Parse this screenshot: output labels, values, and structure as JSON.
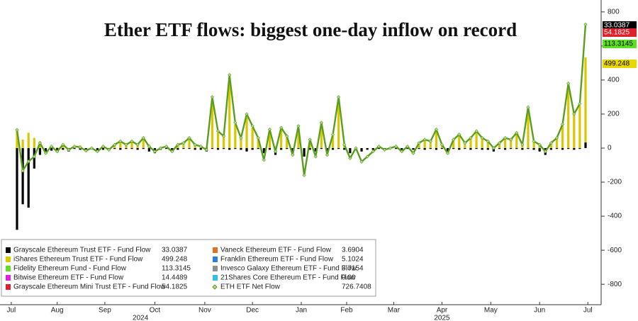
{
  "chart_data": {
    "type": "bar-line",
    "title": "Ether ETF flows: biggest one-day inflow on record",
    "categories": [
      null,
      null,
      null,
      null,
      null,
      null,
      null,
      null,
      null,
      null,
      null,
      null,
      null,
      null,
      null,
      null,
      null,
      null,
      null,
      null,
      null,
      null,
      null,
      null,
      null,
      null,
      null,
      null,
      null,
      null,
      null,
      null,
      null,
      null,
      null,
      null,
      null,
      null,
      null,
      null,
      null,
      null,
      null,
      null,
      null,
      null,
      null,
      null,
      null,
      null,
      null,
      null,
      null,
      null,
      null,
      null,
      null,
      null,
      null,
      null,
      null,
      null,
      null,
      null,
      null,
      null,
      null,
      null,
      null,
      null,
      null,
      null,
      null,
      null,
      null,
      null,
      null,
      null,
      null,
      null,
      null,
      null,
      null,
      null,
      null,
      null,
      null,
      null,
      null,
      null,
      null,
      null,
      null,
      null,
      null,
      null,
      null,
      null,
      null,
      null
    ],
    "xticks": [
      {
        "value": -1,
        "label": "Jul"
      },
      {
        "value": 7,
        "label": "Aug"
      },
      {
        "value": 15.3,
        "label": "Sep"
      },
      {
        "value": 24,
        "label": "Oct"
      },
      {
        "value": 32.7,
        "label": "Nov"
      },
      {
        "value": 41,
        "label": "Dec"
      },
      {
        "value": 49.5,
        "label": "Jan"
      },
      {
        "value": 57.4,
        "label": "Feb"
      },
      {
        "value": 65.6,
        "label": "Mar"
      },
      {
        "value": 74,
        "label": "Apr"
      },
      {
        "value": 82.5,
        "label": "May"
      },
      {
        "value": 91,
        "label": "Jun"
      },
      {
        "value": 99.4,
        "label": "Jul"
      }
    ],
    "year_ticks": [
      {
        "value": 21.5,
        "label": "2024"
      },
      {
        "value": 74,
        "label": "2025"
      }
    ],
    "ylim": [
      -920,
      870
    ],
    "yticks": [
      -800,
      -600,
      -400,
      -200,
      0,
      200,
      400,
      600,
      800
    ],
    "series": [
      {
        "name": "Grayscale Ethereum Trust ETF - Fund Flow",
        "color": "#000000",
        "values": [
          -480,
          -330,
          -350,
          -120,
          -40,
          -20,
          -15,
          -25,
          -10,
          -20,
          -5,
          -10,
          -15,
          -5,
          -20,
          -10,
          -10,
          -5,
          -10,
          -5,
          -5,
          -10,
          -5,
          -20,
          -30,
          -10,
          -5,
          -15,
          -10,
          -5,
          -5,
          -10,
          -10,
          -20,
          -5,
          -10,
          -5,
          -10,
          -5,
          -10,
          -20,
          -10,
          -5,
          -30,
          -10,
          -40,
          -10,
          -5,
          -20,
          -5,
          -50,
          -10,
          -20,
          -5,
          -20,
          -10,
          -5,
          -10,
          -30,
          -10,
          -20,
          -10,
          -10,
          -5,
          -10,
          -5,
          -5,
          -10,
          -5,
          -10,
          -5,
          -10,
          -5,
          -10,
          -5,
          -20,
          -5,
          -10,
          -5,
          -10,
          -5,
          -10,
          -10,
          -20,
          -5,
          -10,
          -5,
          -5,
          -10,
          -5,
          -10,
          -20,
          -40,
          -10,
          -5,
          -10,
          -5,
          -10,
          -5,
          33.0387
        ]
      },
      {
        "name": "iShares Ethereum Trust ETF - Fund Flow",
        "color": "#d8c800",
        "values": [
          110,
          50,
          90,
          60,
          40,
          0,
          10,
          5,
          20,
          0,
          10,
          15,
          0,
          0,
          0,
          15,
          0,
          20,
          40,
          20,
          40,
          25,
          60,
          20,
          0,
          5,
          15,
          0,
          25,
          30,
          60,
          25,
          15,
          5,
          280,
          90,
          70,
          380,
          140,
          60,
          180,
          120,
          60,
          0,
          100,
          10,
          110,
          70,
          0,
          120,
          0,
          50,
          0,
          140,
          0,
          80,
          270,
          20,
          0,
          0,
          0,
          0,
          0,
          10,
          0,
          0,
          10,
          0,
          10,
          0,
          30,
          50,
          40,
          100,
          20,
          0,
          50,
          80,
          30,
          60,
          100,
          60,
          40,
          10,
          30,
          60,
          50,
          90,
          20,
          230,
          40,
          20,
          0,
          30,
          60,
          140,
          360,
          200,
          250,
          499.248
        ]
      },
      {
        "name": "Fidelity Ethereum Fund - Fund Flow",
        "color": "#5ee01e",
        "latest": 113.3145
      },
      {
        "name": "Bitwise Ethereum ETF - Fund Flow",
        "color": "#e020e0",
        "latest": 14.4489
      },
      {
        "name": "Grayscale Ethereum Mini Trust ETF - Fund Flow",
        "color": "#e0202a",
        "latest": 54.1825
      },
      {
        "name": "Vaneck Ethereum ETF - Fund Flow",
        "color": "#e07020",
        "latest": 3.6904
      },
      {
        "name": "Franklin Ethereum ETF - Fund Flow",
        "color": "#2a7fe0",
        "latest": 5.1024
      },
      {
        "name": "Invesco Galaxy Ethereum ETF - Fund Flow",
        "color": "#909090",
        "latest": 3.7154
      },
      {
        "name": "21Shares Core Ethereum ETF - Fund Flow",
        "color": "#30c0e8",
        "latest": {
          "value": 0,
          "label": "0.00"
        }
      },
      {
        "name": "ETH ETF Net Flow",
        "color": "#5a9e1e",
        "type": "line",
        "values": [
          107,
          -133,
          -78,
          -50,
          30,
          -30,
          10,
          -20,
          20,
          -10,
          10,
          5,
          -15,
          0,
          -20,
          10,
          -10,
          20,
          40,
          20,
          40,
          20,
          60,
          10,
          -20,
          0,
          10,
          -20,
          20,
          30,
          60,
          20,
          10,
          -10,
          300,
          100,
          70,
          430,
          150,
          60,
          200,
          130,
          60,
          -70,
          110,
          -20,
          120,
          70,
          -40,
          130,
          -160,
          50,
          -50,
          150,
          -40,
          80,
          300,
          20,
          -60,
          0,
          -80,
          -50,
          -20,
          10,
          -10,
          0,
          10,
          -20,
          10,
          -30,
          30,
          50,
          40,
          110,
          20,
          -30,
          50,
          80,
          30,
          60,
          100,
          60,
          40,
          0,
          30,
          60,
          50,
          90,
          20,
          240,
          40,
          20,
          -20,
          30,
          60,
          140,
          380,
          200,
          260,
          726.7408
        ]
      }
    ]
  }
}
